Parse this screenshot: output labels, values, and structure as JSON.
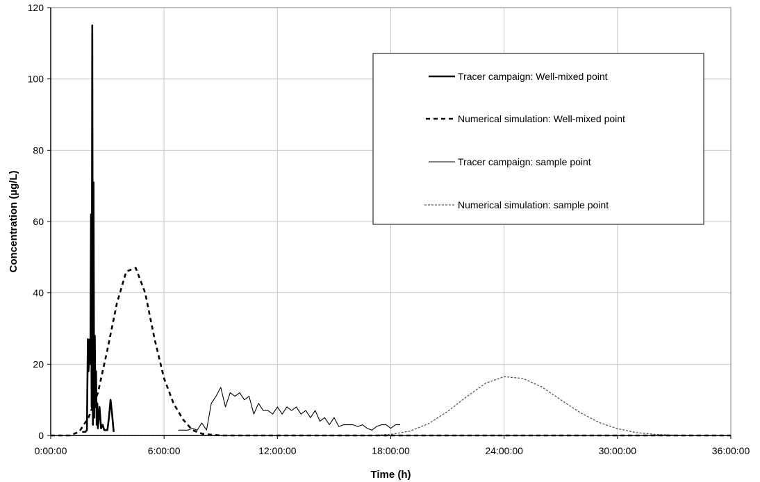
{
  "chart_data": {
    "type": "line",
    "title": "",
    "xlabel": "Time (h)",
    "ylabel": "Concentration (µg/L)",
    "xlim": [
      "0:00:00",
      "36:00:00"
    ],
    "ylim": [
      0,
      120
    ],
    "grid": true,
    "legend_placement": "top-right",
    "x_ticks": [
      "0:00:00",
      "6:00:00",
      "12:00:00",
      "18:00:00",
      "24:00:00",
      "30:00:00",
      "36:00:00"
    ],
    "y_ticks": [
      "0",
      "20",
      "40",
      "60",
      "80",
      "100",
      "120"
    ],
    "series": [
      {
        "name": "Tracer campaign: Well-mixed point",
        "style": "thick-solid",
        "color": "#000000",
        "x": [
          "1:40:00",
          "1:50:00",
          "1:55:00",
          "1:58:00",
          "2:00:00",
          "2:02:00",
          "2:04:00",
          "2:06:00",
          "2:08:00",
          "2:10:00",
          "2:12:00",
          "2:14:00",
          "2:16:00",
          "2:18:00",
          "2:20:00",
          "2:22:00",
          "2:24:00",
          "2:26:00",
          "2:28:00",
          "2:30:00",
          "2:35:00",
          "2:40:00",
          "2:45:00",
          "2:50:00",
          "2:55:00",
          "3:00:00",
          "3:05:00",
          "3:10:00",
          "3:15:00",
          "3:20:00"
        ],
        "y": [
          1,
          1,
          1.5,
          27,
          18,
          22,
          27,
          20,
          62,
          8,
          115,
          3,
          71,
          5,
          28,
          8,
          18,
          3,
          9,
          2,
          8,
          2,
          3,
          1.5,
          1.5,
          1.5,
          5,
          10,
          6,
          1
        ]
      },
      {
        "name": "Numerical simulation: Well-mixed point",
        "style": "thick-dashed",
        "color": "#000000",
        "x": [
          "0:00:00",
          "1:00:00",
          "1:30:00",
          "2:00:00",
          "2:30:00",
          "3:00:00",
          "3:30:00",
          "4:00:00",
          "4:30:00",
          "5:00:00",
          "5:30:00",
          "6:00:00",
          "6:30:00",
          "7:00:00",
          "7:30:00",
          "8:00:00",
          "8:30:00",
          "9:00:00",
          "12:00:00",
          "18:00:00",
          "24:00:00",
          "30:00:00",
          "36:00:00"
        ],
        "y": [
          0,
          0,
          1,
          5,
          12,
          24,
          37,
          46,
          47,
          40,
          27,
          16,
          9,
          4.5,
          1.5,
          0.5,
          0.2,
          0,
          0,
          0,
          0,
          0,
          0
        ]
      },
      {
        "name": "Tracer campaign: sample point",
        "style": "thin-solid",
        "color": "#000000",
        "x": [
          "6:45:00",
          "7:15:00",
          "7:30:00",
          "7:45:00",
          "8:00:00",
          "8:15:00",
          "8:30:00",
          "8:45:00",
          "9:00:00",
          "9:15:00",
          "9:30:00",
          "9:45:00",
          "10:00:00",
          "10:15:00",
          "10:30:00",
          "10:45:00",
          "11:00:00",
          "11:15:00",
          "11:30:00",
          "11:45:00",
          "12:00:00",
          "12:15:00",
          "12:30:00",
          "12:45:00",
          "13:00:00",
          "13:15:00",
          "13:30:00",
          "13:45:00",
          "14:00:00",
          "14:15:00",
          "14:30:00",
          "14:45:00",
          "15:00:00",
          "15:15:00",
          "15:30:00",
          "15:45:00",
          "16:00:00",
          "16:15:00",
          "16:30:00",
          "16:45:00",
          "17:00:00",
          "17:15:00",
          "17:30:00",
          "17:45:00",
          "18:00:00",
          "18:15:00",
          "18:30:00"
        ],
        "y": [
          1.5,
          1.5,
          2,
          1.5,
          3.5,
          1.5,
          9,
          11,
          13.5,
          8,
          12,
          11,
          12,
          10,
          11,
          6,
          9,
          7,
          7,
          6,
          8,
          6,
          8,
          7,
          8,
          6,
          7,
          5,
          7,
          4,
          5,
          3,
          5,
          2.5,
          3,
          3,
          3,
          2.5,
          3,
          2,
          1.5,
          2.5,
          3,
          3,
          2,
          3,
          3
        ]
      },
      {
        "name": "Numerical simulation: sample point",
        "style": "thin-dotted",
        "color": "#555555",
        "x": [
          "0:00:00",
          "17:00:00",
          "18:00:00",
          "19:00:00",
          "20:00:00",
          "21:00:00",
          "22:00:00",
          "23:00:00",
          "24:00:00",
          "25:00:00",
          "26:00:00",
          "27:00:00",
          "28:00:00",
          "29:00:00",
          "30:00:00",
          "31:00:00",
          "32:00:00",
          "33:00:00",
          "34:00:00",
          "36:00:00"
        ],
        "y": [
          0,
          0,
          0.3,
          1.2,
          3.3,
          6.7,
          10.8,
          14.6,
          16.5,
          16.0,
          13.6,
          10.0,
          6.5,
          3.7,
          1.9,
          0.8,
          0.3,
          0.1,
          0,
          0
        ]
      }
    ]
  }
}
